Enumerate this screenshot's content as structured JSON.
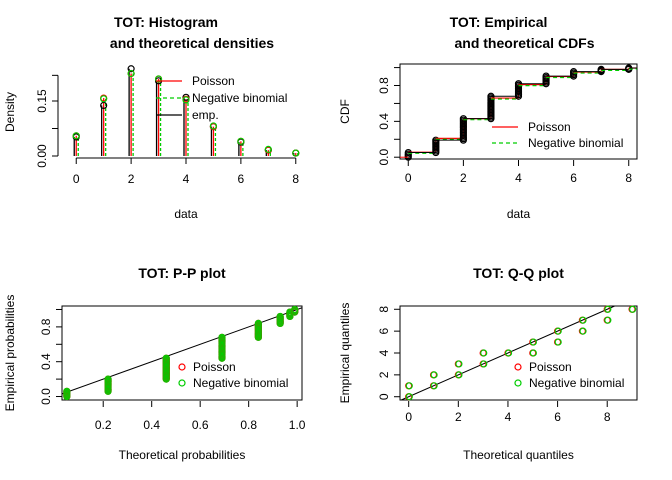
{
  "colors": {
    "poisson": "#ff0000",
    "negbin": "#00cd00",
    "emp": "#000000"
  },
  "chart_data": [
    {
      "type": "bar",
      "title": [
        "TOT: Histogram",
        "and theoretical densities"
      ],
      "xlabel": "data",
      "ylabel": "Density",
      "xlim": [
        -0.3,
        8.3
      ],
      "ylim": [
        0,
        0.24
      ],
      "xticks": [
        0,
        2,
        4,
        6,
        8
      ],
      "yticks": [
        0.0,
        0.15
      ],
      "ytick_labels": [
        "0.00",
        "0.15"
      ],
      "x": [
        0,
        1,
        2,
        3,
        4,
        5,
        6,
        7,
        8
      ],
      "legend_position": "top-right",
      "series": [
        {
          "name": "emp.",
          "values": [
            0.052,
            0.138,
            0.238,
            0.205,
            0.16,
            0.08,
            0.038,
            0.016,
            0.008
          ]
        },
        {
          "name": "Poisson",
          "values": [
            0.055,
            0.158,
            0.225,
            0.21,
            0.155,
            0.08,
            0.04,
            0.016,
            0.008
          ]
        },
        {
          "name": "Negative binomial",
          "values": [
            0.055,
            0.156,
            0.225,
            0.21,
            0.153,
            0.082,
            0.04,
            0.018,
            0.008
          ]
        }
      ]
    },
    {
      "type": "line",
      "title": [
        "TOT: Empirical",
        "and theoretical CDFs"
      ],
      "xlabel": "data",
      "ylabel": "CDF",
      "xlim": [
        -0.3,
        8.3
      ],
      "ylim": [
        -0.02,
        1.04
      ],
      "xticks": [
        0,
        2,
        4,
        6,
        8
      ],
      "yticks": [
        0.0,
        0.4,
        0.8
      ],
      "ytick_labels": [
        "0.0",
        "0.4",
        "0.8"
      ],
      "x": [
        0,
        1,
        2,
        3,
        4,
        5,
        6,
        7,
        8
      ],
      "legend_position": "right",
      "series": [
        {
          "name": "emp.",
          "values": [
            0.052,
            0.19,
            0.43,
            0.68,
            0.82,
            0.905,
            0.955,
            0.98,
            0.995
          ]
        },
        {
          "name": "Poisson",
          "values": [
            0.055,
            0.21,
            0.43,
            0.66,
            0.81,
            0.9,
            0.95,
            0.98,
            0.995
          ]
        },
        {
          "name": "Negative binomial",
          "values": [
            0.055,
            0.21,
            0.43,
            0.66,
            0.81,
            0.9,
            0.95,
            0.98,
            0.995
          ]
        }
      ]
    },
    {
      "type": "scatter",
      "title": [
        "TOT: P-P plot"
      ],
      "xlabel": "Theoretical probabilities",
      "ylabel": "Empirical probabilities",
      "xlim": [
        0.03,
        1.02
      ],
      "ylim": [
        -0.04,
        1.04
      ],
      "xticks": [
        0.2,
        0.4,
        0.6,
        0.8,
        1.0
      ],
      "xtick_labels": [
        "0.2",
        "0.4",
        "0.6",
        "0.8",
        "1.0"
      ],
      "yticks": [
        0.0,
        0.4,
        0.8
      ],
      "ytick_labels": [
        "0.0",
        "0.4",
        "0.8"
      ],
      "legend_position": "bottom-right",
      "clusters": [
        {
          "x": 0.05,
          "y_min": 0.0,
          "y_max": 0.06
        },
        {
          "x": 0.22,
          "y_min": 0.06,
          "y_max": 0.2
        },
        {
          "x": 0.46,
          "y_min": 0.2,
          "y_max": 0.44
        },
        {
          "x": 0.69,
          "y_min": 0.44,
          "y_max": 0.68
        },
        {
          "x": 0.84,
          "y_min": 0.68,
          "y_max": 0.84
        },
        {
          "x": 0.93,
          "y_min": 0.84,
          "y_max": 0.92
        },
        {
          "x": 0.97,
          "y_min": 0.92,
          "y_max": 0.97
        },
        {
          "x": 0.99,
          "y_min": 0.97,
          "y_max": 1.0
        }
      ],
      "series": [
        {
          "name": "Poisson"
        },
        {
          "name": "Negative binomial"
        }
      ]
    },
    {
      "type": "scatter",
      "title": [
        "TOT: Q-Q plot"
      ],
      "xlabel": "Theoretical quantiles",
      "ylabel": "Empirical quantiles",
      "xlim": [
        -0.35,
        9.2
      ],
      "ylim": [
        -0.3,
        8.3
      ],
      "xticks": [
        0,
        2,
        4,
        6,
        8
      ],
      "yticks": [
        0,
        2,
        4,
        6,
        8
      ],
      "legend_position": "bottom-right",
      "series": [
        {
          "name": "Poisson",
          "points": [
            [
              0,
              0
            ],
            [
              0,
              1
            ],
            [
              1,
              1
            ],
            [
              1,
              2
            ],
            [
              2,
              2
            ],
            [
              2,
              3
            ],
            [
              3,
              3
            ],
            [
              3,
              4
            ],
            [
              4,
              4
            ],
            [
              5,
              4
            ],
            [
              5,
              5
            ],
            [
              6,
              5
            ],
            [
              6,
              6
            ],
            [
              7,
              6
            ],
            [
              7,
              7
            ],
            [
              8,
              7
            ],
            [
              8,
              8
            ],
            [
              9,
              8
            ]
          ]
        },
        {
          "name": "Negative binomial",
          "points": [
            [
              0,
              0
            ],
            [
              0,
              1
            ],
            [
              1,
              1
            ],
            [
              1,
              2
            ],
            [
              2,
              2
            ],
            [
              2,
              3
            ],
            [
              3,
              3
            ],
            [
              3,
              4
            ],
            [
              4,
              4
            ],
            [
              5,
              4
            ],
            [
              5,
              5
            ],
            [
              6,
              5
            ],
            [
              6,
              6
            ],
            [
              7,
              6
            ],
            [
              7,
              7
            ],
            [
              8,
              7
            ],
            [
              8,
              8
            ],
            [
              9,
              8
            ]
          ]
        }
      ]
    }
  ]
}
